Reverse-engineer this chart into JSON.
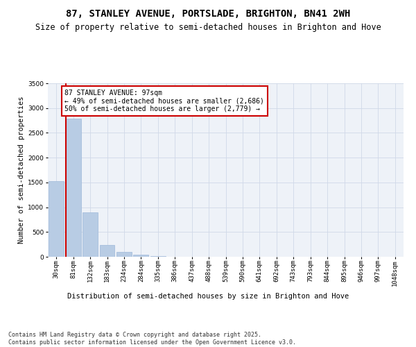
{
  "title": "87, STANLEY AVENUE, PORTSLADE, BRIGHTON, BN41 2WH",
  "subtitle": "Size of property relative to semi-detached houses in Brighton and Hove",
  "xlabel": "Distribution of semi-detached houses by size in Brighton and Hove",
  "ylabel": "Number of semi-detached properties",
  "bin_labels": [
    "30sqm",
    "81sqm",
    "132sqm",
    "183sqm",
    "234sqm",
    "284sqm",
    "335sqm",
    "386sqm",
    "437sqm",
    "488sqm",
    "539sqm",
    "590sqm",
    "641sqm",
    "692sqm",
    "743sqm",
    "793sqm",
    "844sqm",
    "895sqm",
    "946sqm",
    "997sqm",
    "1048sqm"
  ],
  "bar_heights": [
    1530,
    2780,
    900,
    240,
    100,
    40,
    20,
    5,
    0,
    0,
    0,
    0,
    0,
    0,
    0,
    0,
    0,
    0,
    0,
    0,
    0
  ],
  "bar_color": "#b8cce4",
  "bar_edge_color": "#9db8d9",
  "grid_color": "#d0d8e8",
  "bg_color": "#eef2f8",
  "vline_x_index": 1,
  "vline_color": "#cc0000",
  "annotation_text": "87 STANLEY AVENUE: 97sqm\n← 49% of semi-detached houses are smaller (2,686)\n50% of semi-detached houses are larger (2,779) →",
  "annotation_box_color": "#cc0000",
  "ylim": [
    0,
    3500
  ],
  "yticks": [
    0,
    500,
    1000,
    1500,
    2000,
    2500,
    3000,
    3500
  ],
  "footer_text": "Contains HM Land Registry data © Crown copyright and database right 2025.\nContains public sector information licensed under the Open Government Licence v3.0.",
  "title_fontsize": 10,
  "subtitle_fontsize": 8.5,
  "axis_label_fontsize": 7.5,
  "tick_fontsize": 6.5,
  "annotation_fontsize": 7,
  "footer_fontsize": 6
}
